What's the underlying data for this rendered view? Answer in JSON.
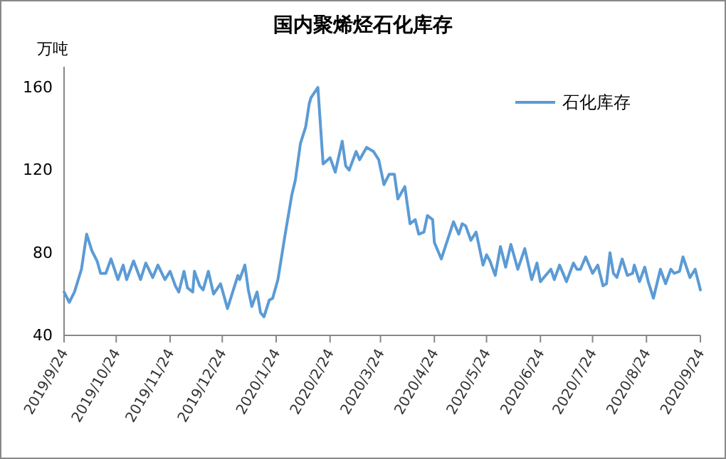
{
  "chart_data": {
    "type": "line",
    "title": "国内聚烯烃石化库存",
    "ylabel": "万吨",
    "x": [
      "2019-09-24",
      "2019-09-27",
      "2019-09-30",
      "2019-10-04",
      "2019-10-07",
      "2019-10-10",
      "2019-10-13",
      "2019-10-15",
      "2019-10-18",
      "2019-10-21",
      "2019-10-25",
      "2019-10-28",
      "2019-10-30",
      "2019-11-03",
      "2019-11-07",
      "2019-11-10",
      "2019-11-14",
      "2019-11-17",
      "2019-11-21",
      "2019-11-24",
      "2019-11-27",
      "2019-11-29",
      "2019-12-02",
      "2019-12-04",
      "2019-12-07",
      "2019-12-08",
      "2019-12-11",
      "2019-12-13",
      "2019-12-16",
      "2019-12-19",
      "2019-12-23",
      "2019-12-27",
      "2019-12-30",
      "2020-01-02",
      "2020-01-03",
      "2020-01-06",
      "2020-01-08",
      "2020-01-10",
      "2020-01-13",
      "2020-01-15",
      "2020-01-17",
      "2020-01-20",
      "2020-01-22",
      "2020-01-25",
      "2020-01-29",
      "2020-02-02",
      "2020-02-04",
      "2020-02-07",
      "2020-02-10",
      "2020-02-12",
      "2020-02-13",
      "2020-02-17",
      "2020-02-20",
      "2020-02-24",
      "2020-02-27",
      "2020-03-02",
      "2020-03-04",
      "2020-03-06",
      "2020-03-10",
      "2020-03-12",
      "2020-03-16",
      "2020-03-20",
      "2020-03-23",
      "2020-03-26",
      "2020-03-29",
      "2020-04-01",
      "2020-04-03",
      "2020-04-07",
      "2020-04-10",
      "2020-04-13",
      "2020-04-15",
      "2020-04-18",
      "2020-04-20",
      "2020-04-23",
      "2020-04-24",
      "2020-04-28",
      "2020-05-05",
      "2020-05-08",
      "2020-05-10",
      "2020-05-12",
      "2020-05-15",
      "2020-05-18",
      "2020-05-22",
      "2020-05-24",
      "2020-05-26",
      "2020-05-29",
      "2020-06-01",
      "2020-06-04",
      "2020-06-07",
      "2020-06-11",
      "2020-06-15",
      "2020-06-19",
      "2020-06-22",
      "2020-06-24",
      "2020-06-28",
      "2020-06-30",
      "2020-07-02",
      "2020-07-05",
      "2020-07-09",
      "2020-07-13",
      "2020-07-15",
      "2020-07-17",
      "2020-07-20",
      "2020-07-24",
      "2020-07-27",
      "2020-07-30",
      "2020-08-01",
      "2020-08-03",
      "2020-08-05",
      "2020-08-07",
      "2020-08-10",
      "2020-08-13",
      "2020-08-16",
      "2020-08-17",
      "2020-08-20",
      "2020-08-23",
      "2020-08-25",
      "2020-08-28",
      "2020-09-01",
      "2020-09-04",
      "2020-09-07",
      "2020-09-09",
      "2020-09-12",
      "2020-09-14",
      "2020-09-18",
      "2020-09-21",
      "2020-09-24"
    ],
    "series": [
      {
        "name": "石化库存",
        "color": "#5b9bd5",
        "values": [
          61,
          56,
          61,
          72,
          89,
          81,
          76,
          70,
          70,
          77,
          67,
          74,
          67,
          76,
          67,
          75,
          68,
          74,
          67,
          71,
          64,
          61,
          71,
          63,
          61,
          71,
          64,
          62,
          71,
          60,
          65,
          53,
          61,
          69,
          67,
          74,
          62,
          54,
          61,
          51,
          49,
          57,
          58,
          67,
          88,
          108,
          115,
          133,
          141,
          152,
          155,
          160,
          123,
          126,
          119,
          134,
          122,
          120,
          129,
          125,
          131,
          129,
          125,
          113,
          118,
          118,
          106,
          112,
          94,
          96,
          89,
          90,
          98,
          96,
          85,
          77,
          95,
          89,
          94,
          93,
          86,
          90,
          74,
          79,
          76,
          69,
          83,
          73,
          84,
          72,
          82,
          67,
          75,
          66,
          70,
          72,
          67,
          74,
          66,
          75,
          72,
          72,
          78,
          70,
          74,
          64,
          65,
          80,
          70,
          68,
          77,
          69,
          70,
          74,
          66,
          73,
          66,
          58,
          72,
          65,
          72,
          70,
          71,
          78,
          68,
          72,
          62
        ]
      }
    ],
    "xlim": [
      "2019-09-24",
      "2020-09-24"
    ],
    "xticks": [
      {
        "value": "2019-09-24",
        "label": "2019/9/24"
      },
      {
        "value": "2019-10-24",
        "label": "2019/10/24"
      },
      {
        "value": "2019-11-24",
        "label": "2019/11/24"
      },
      {
        "value": "2019-12-24",
        "label": "2019/12/24"
      },
      {
        "value": "2020-01-24",
        "label": "2020/1/24"
      },
      {
        "value": "2020-02-24",
        "label": "2020/2/24"
      },
      {
        "value": "2020-03-24",
        "label": "2020/3/24"
      },
      {
        "value": "2020-04-24",
        "label": "2020/4/24"
      },
      {
        "value": "2020-05-24",
        "label": "2020/5/24"
      },
      {
        "value": "2020-06-24",
        "label": "2020/6/24"
      },
      {
        "value": "2020-07-24",
        "label": "2020/7/24"
      },
      {
        "value": "2020-08-24",
        "label": "2020/8/24"
      },
      {
        "value": "2020-09-24",
        "label": "2020/9/24"
      }
    ],
    "ylim": [
      40,
      170
    ],
    "yticks": [
      40,
      80,
      120,
      160
    ],
    "legend": "top right",
    "line_style": "solid"
  }
}
